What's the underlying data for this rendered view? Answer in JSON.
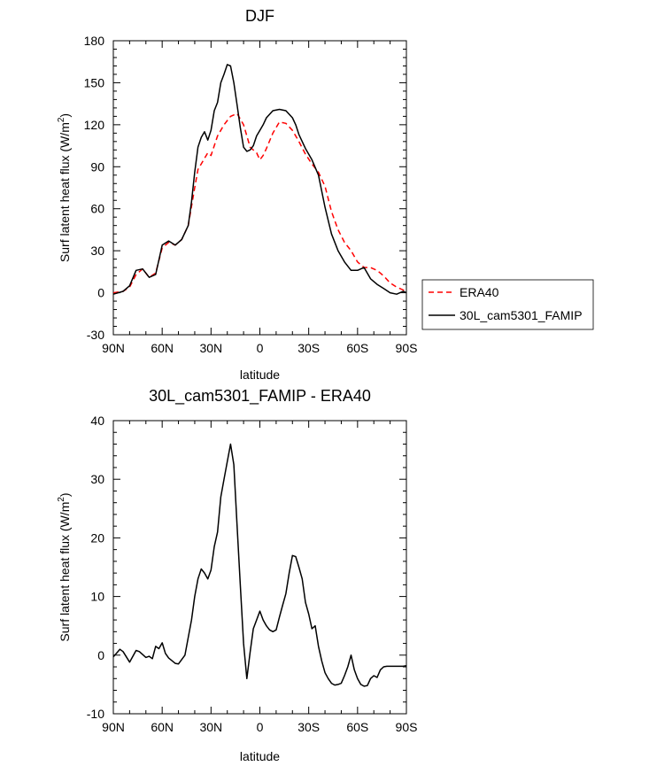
{
  "figure": {
    "background": "#ffffff"
  },
  "chart_data": [
    {
      "type": "line",
      "title": "DJF",
      "xlabel": "latitude",
      "ylabel": "Surf latent heat flux (W/m",
      "ylabel_sup": "2",
      "ylabel_end": ")",
      "xlim": [
        -90,
        90
      ],
      "ylim": [
        -30,
        180
      ],
      "yticks": [
        -30,
        0,
        30,
        60,
        90,
        120,
        150,
        180
      ],
      "xticks": [
        -90,
        -60,
        -30,
        0,
        30,
        60,
        90
      ],
      "xticklabels": [
        "90N",
        "60N",
        "30N",
        "0",
        "30S",
        "60S",
        "90S"
      ],
      "legend": {
        "position": "outside-right",
        "entries": [
          "ERA40",
          "30L_cam5301_FAMIP"
        ]
      },
      "series": [
        {
          "name": "ERA40",
          "color": "#ff0000",
          "dash": true,
          "x": [
            -90,
            -84,
            -80,
            -76,
            -72,
            -68,
            -64,
            -60,
            -56,
            -52,
            -48,
            -44,
            -40,
            -38,
            -36,
            -32,
            -30,
            -26,
            -22,
            -18,
            -14,
            -10,
            -8,
            -6,
            -4,
            -2,
            0,
            2,
            4,
            8,
            12,
            16,
            20,
            24,
            28,
            32,
            36,
            40,
            44,
            48,
            52,
            56,
            60,
            64,
            68,
            72,
            76,
            80,
            84,
            88,
            90
          ],
          "y": [
            0,
            1,
            4,
            13,
            17,
            11,
            14,
            32,
            36,
            34,
            38,
            48,
            75,
            88,
            92,
            100,
            98,
            112,
            120,
            126,
            128,
            120,
            112,
            104,
            102,
            100,
            95,
            98,
            103,
            114,
            122,
            121,
            116,
            108,
            99,
            92,
            86,
            76,
            58,
            45,
            36,
            30,
            22,
            18,
            18,
            16,
            12,
            7,
            4,
            2,
            1
          ]
        },
        {
          "name": "30L_cam5301_FAMIP",
          "color": "#000000",
          "dash": false,
          "x": [
            -90,
            -84,
            -80,
            -76,
            -72,
            -68,
            -64,
            -60,
            -56,
            -52,
            -48,
            -44,
            -42,
            -40,
            -38,
            -36,
            -34,
            -32,
            -30,
            -28,
            -26,
            -24,
            -22,
            -20,
            -18,
            -16,
            -14,
            -12,
            -10,
            -8,
            -6,
            -4,
            -2,
            0,
            2,
            4,
            8,
            12,
            16,
            20,
            22,
            24,
            28,
            32,
            36,
            40,
            44,
            48,
            52,
            56,
            60,
            64,
            68,
            72,
            76,
            80,
            84,
            88,
            90
          ],
          "y": [
            -1,
            1,
            5,
            16,
            17,
            11,
            13,
            34,
            37,
            34,
            38,
            48,
            65,
            86,
            104,
            111,
            115,
            109,
            116,
            130,
            136,
            150,
            156,
            163,
            162,
            150,
            134,
            118,
            104,
            101,
            102,
            105,
            112,
            116,
            120,
            125,
            130,
            131,
            130,
            125,
            120,
            113,
            103,
            95,
            84,
            61,
            42,
            30,
            22,
            16,
            16,
            18,
            10,
            6,
            3,
            0,
            -1,
            1,
            0
          ]
        }
      ]
    },
    {
      "type": "line",
      "title": "30L_cam5301_FAMIP - ERA40",
      "xlabel": "latitude",
      "ylabel": "Surf latent heat flux (W/m",
      "ylabel_sup": "2",
      "ylabel_end": ")",
      "xlim": [
        -90,
        90
      ],
      "ylim": [
        -10,
        40
      ],
      "yticks": [
        -10,
        0,
        10,
        20,
        30,
        40
      ],
      "xticks": [
        -90,
        -60,
        -30,
        0,
        30,
        60,
        90
      ],
      "xticklabels": [
        "90N",
        "60N",
        "30N",
        "0",
        "30S",
        "60S",
        "90S"
      ],
      "series": [
        {
          "name": "",
          "color": "#000000",
          "dash": false,
          "x": [
            -90,
            -86,
            -84,
            -80,
            -76,
            -74,
            -70,
            -68,
            -66,
            -64,
            -62,
            -60,
            -58,
            -56,
            -52,
            -50,
            -46,
            -44,
            -42,
            -40,
            -38,
            -36,
            -34,
            -32,
            -30,
            -28,
            -26,
            -24,
            -22,
            -20,
            -18,
            -16,
            -14,
            -12,
            -10,
            -8,
            -6,
            -4,
            -2,
            0,
            2,
            4,
            6,
            8,
            10,
            12,
            14,
            16,
            18,
            20,
            22,
            24,
            26,
            28,
            30,
            32,
            34,
            36,
            38,
            40,
            42,
            44,
            46,
            48,
            50,
            52,
            54,
            56,
            58,
            60,
            62,
            64,
            66,
            68,
            70,
            72,
            74,
            76,
            78,
            80,
            82,
            84,
            86,
            88,
            90
          ],
          "y": [
            -0.3,
            1.0,
            0.6,
            -1.2,
            0.8,
            0.6,
            -0.4,
            -0.2,
            -0.6,
            1.5,
            1.1,
            2.1,
            0.3,
            -0.5,
            -1.4,
            -1.5,
            0.0,
            3.0,
            6.0,
            10.0,
            13.0,
            14.7,
            14.0,
            13.0,
            14.5,
            18.5,
            21.0,
            27.0,
            30.0,
            33.0,
            36.0,
            32.5,
            22.0,
            12.0,
            2.0,
            -4.0,
            0.5,
            4.5,
            6.0,
            7.5,
            6.0,
            5.0,
            4.3,
            4.0,
            4.3,
            6.5,
            8.5,
            10.5,
            14.0,
            17.0,
            16.8,
            15.0,
            13.0,
            9.0,
            7.0,
            4.5,
            5.0,
            1.5,
            -1.0,
            -3.0,
            -4.0,
            -4.8,
            -5.1,
            -5.0,
            -4.8,
            -3.5,
            -2.0,
            0.0,
            -2.5,
            -4.0,
            -5.0,
            -5.3,
            -5.2,
            -4.0,
            -3.5,
            -3.8,
            -2.5,
            -2.0,
            -1.9,
            -1.9,
            -1.9,
            -1.9,
            -1.9,
            -1.9,
            -1.8
          ]
        }
      ]
    }
  ]
}
